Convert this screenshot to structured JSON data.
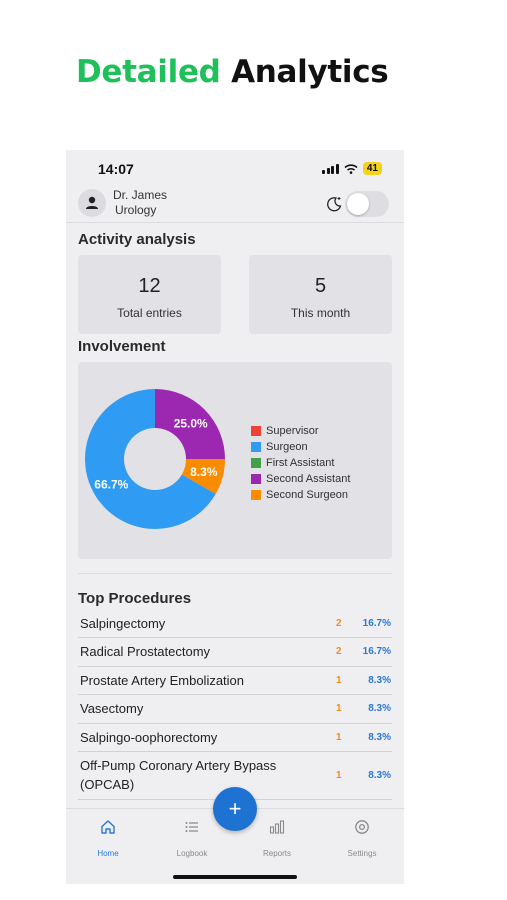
{
  "headline": {
    "accent": "Detailed",
    "rest": "Analytics"
  },
  "status_bar": {
    "time": "14:07",
    "battery": "41"
  },
  "profile": {
    "name": "Dr. James",
    "department": "Urology"
  },
  "activity": {
    "title": "Activity analysis",
    "cards": [
      {
        "value": "12",
        "label": "Total entries"
      },
      {
        "value": "5",
        "label": "This month"
      }
    ]
  },
  "involvement": {
    "title": "Involvement",
    "legend": [
      {
        "label": "Supervisor",
        "color": "#ef4136"
      },
      {
        "label": "Surgeon",
        "color": "#2f9bf2"
      },
      {
        "label": "First Assistant",
        "color": "#43a047"
      },
      {
        "label": "Second Assistant",
        "color": "#9c27b0"
      },
      {
        "label": "Second Surgeon",
        "color": "#fb8c00"
      }
    ],
    "slices": [
      {
        "label": "Surgeon",
        "value": 66.7,
        "text": "66.7%",
        "color": "#2f9bf2"
      },
      {
        "label": "Second Assistant",
        "value": 25.0,
        "text": "25.0%",
        "color": "#9c27b0"
      },
      {
        "label": "Second Surgeon",
        "value": 8.3,
        "text": "8.3%",
        "color": "#fb8c00"
      }
    ]
  },
  "chart_data": {
    "type": "pie",
    "title": "Involvement",
    "categories": [
      "Supervisor",
      "Surgeon",
      "First Assistant",
      "Second Assistant",
      "Second Surgeon"
    ],
    "values": [
      0,
      66.7,
      0,
      25.0,
      8.3
    ],
    "legend": "right"
  },
  "top_procedures": {
    "title": "Top Procedures",
    "items": [
      {
        "name": "Salpingectomy",
        "count": "2",
        "percent": "16.7%"
      },
      {
        "name": "Radical Prostatectomy",
        "count": "2",
        "percent": "16.7%"
      },
      {
        "name": "Prostate Artery Embolization",
        "count": "1",
        "percent": "8.3%"
      },
      {
        "name": "Vasectomy",
        "count": "1",
        "percent": "8.3%"
      },
      {
        "name": "Salpingo-oophorectomy",
        "count": "1",
        "percent": "8.3%"
      },
      {
        "name": "Off-Pump Coronary Artery Bypass (OPCAB)",
        "count": "1",
        "percent": "8.3%"
      }
    ]
  },
  "tabbar": {
    "tabs": [
      {
        "label": "Home",
        "icon": "home-icon"
      },
      {
        "label": "Logbook",
        "icon": "list-icon"
      },
      {
        "label": "Reports",
        "icon": "bar-chart-icon"
      },
      {
        "label": "Settings",
        "icon": "gear-icon"
      }
    ],
    "fab": "+"
  },
  "colors": {
    "accent_green": "#1fc05a",
    "primary_blue": "#2a78d4",
    "count_orange": "#f28c1a"
  }
}
